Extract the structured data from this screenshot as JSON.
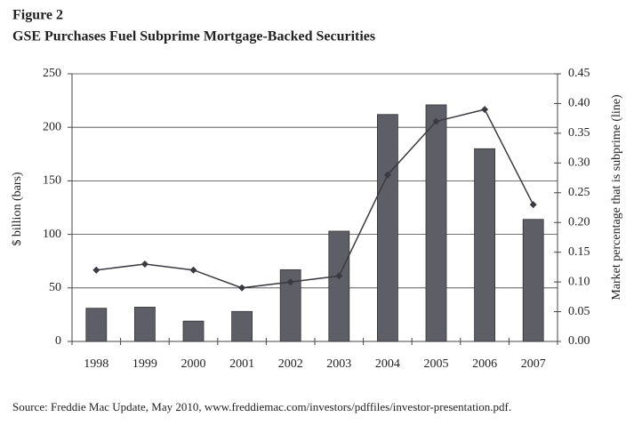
{
  "chart_data": {
    "type": "bar",
    "label": "Figure 2",
    "title": "GSE Purchases Fuel Subprime Mortgage-Backed Securities",
    "ylabel": "$ billion (bars)",
    "y2label": "Market percentage that is subprime (line)",
    "source": "Source:  Freddie Mac Update, May 2010, www.freddiemac.com/investors/pdffiles/investor-presentation.pdf.",
    "categories": [
      "1998",
      "1999",
      "2000",
      "2001",
      "2002",
      "2003",
      "2004",
      "2005",
      "2006",
      "2007"
    ],
    "series": [
      {
        "name": "$ billion",
        "type": "bar",
        "color": "#5e5e66",
        "values": [
          31,
          32,
          19,
          28,
          67,
          103,
          212,
          221,
          180,
          114
        ]
      },
      {
        "name": "Market percentage that is subprime",
        "type": "line",
        "axis": "y2",
        "color": "#3a3a40",
        "values": [
          0.12,
          0.13,
          0.12,
          0.09,
          0.1,
          0.11,
          0.28,
          0.37,
          0.39,
          0.23
        ]
      }
    ],
    "ylim": [
      0,
      250
    ],
    "yticks": [
      0,
      50,
      100,
      150,
      200,
      250
    ],
    "y2lim": [
      0,
      0.45
    ],
    "y2ticks": [
      {
        "value": 0,
        "label": "0.00"
      },
      0.05,
      {
        "value": 0.1,
        "label": "0.10"
      },
      0.15,
      {
        "value": 0.2,
        "label": "0.20"
      },
      0.25,
      {
        "value": 0.3,
        "label": "0.30"
      },
      0.35,
      {
        "value": 0.4,
        "label": "0.40"
      },
      0.45
    ],
    "grid": true
  }
}
